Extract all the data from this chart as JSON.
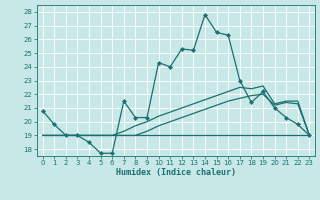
{
  "xlabel": "Humidex (Indice chaleur)",
  "background_color": "#c8e8e8",
  "grid_color": "#ffffff",
  "line_color": "#1a7070",
  "xlim": [
    -0.5,
    23.5
  ],
  "ylim": [
    17.5,
    28.5
  ],
  "xticks": [
    0,
    1,
    2,
    3,
    4,
    5,
    6,
    7,
    8,
    9,
    10,
    11,
    12,
    13,
    14,
    15,
    16,
    17,
    18,
    19,
    20,
    21,
    22,
    23
  ],
  "yticks": [
    18,
    19,
    20,
    21,
    22,
    23,
    24,
    25,
    26,
    27,
    28
  ],
  "line1_x": [
    0,
    1,
    2,
    3,
    4,
    5,
    6,
    7,
    8,
    9,
    10,
    11,
    12,
    13,
    14,
    15,
    16,
    17,
    18,
    19,
    20,
    21,
    22,
    23
  ],
  "line1_y": [
    20.8,
    19.8,
    19.0,
    19.0,
    18.5,
    17.7,
    17.7,
    21.5,
    20.3,
    20.3,
    24.3,
    24.0,
    25.3,
    25.2,
    27.8,
    26.5,
    26.3,
    23.0,
    21.4,
    22.2,
    21.0,
    20.3,
    19.8,
    19.0
  ],
  "line2_x": [
    0,
    23
  ],
  "line2_y": [
    19.0,
    19.0
  ],
  "line3_x": [
    0,
    1,
    2,
    3,
    4,
    5,
    6,
    7,
    8,
    9,
    10,
    11,
    12,
    13,
    14,
    15,
    16,
    17,
    18,
    19,
    20,
    21,
    22,
    23
  ],
  "line3_y": [
    19.0,
    19.0,
    19.0,
    19.0,
    19.0,
    19.0,
    19.0,
    19.3,
    19.7,
    20.0,
    20.4,
    20.7,
    21.0,
    21.3,
    21.6,
    21.9,
    22.2,
    22.5,
    22.4,
    22.6,
    21.3,
    21.5,
    21.5,
    19.0
  ],
  "line4_x": [
    0,
    1,
    2,
    3,
    4,
    5,
    6,
    7,
    8,
    9,
    10,
    11,
    12,
    13,
    14,
    15,
    16,
    17,
    18,
    19,
    20,
    21,
    22,
    23
  ],
  "line4_y": [
    19.0,
    19.0,
    19.0,
    19.0,
    19.0,
    19.0,
    19.0,
    19.0,
    19.0,
    19.3,
    19.7,
    20.0,
    20.3,
    20.6,
    20.9,
    21.2,
    21.5,
    21.7,
    21.9,
    22.0,
    21.2,
    21.4,
    21.3,
    19.0
  ]
}
